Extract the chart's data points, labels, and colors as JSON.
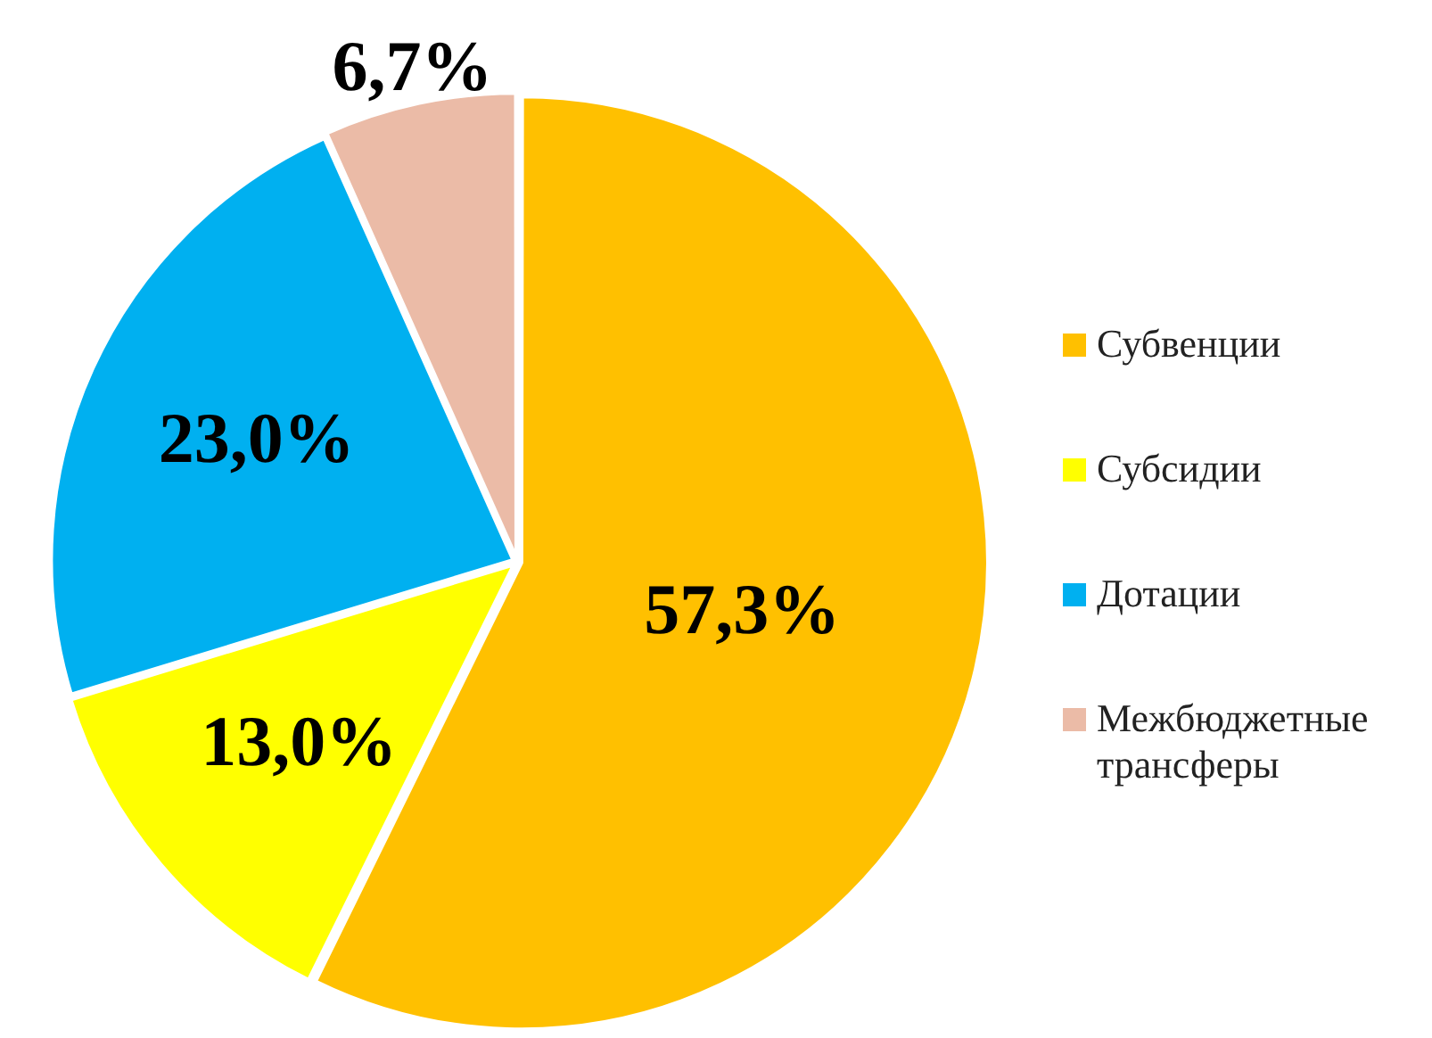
{
  "chart_data": {
    "type": "pie",
    "categories": [
      "Субвенции",
      "Субсидии",
      "Дотации",
      "Межбюджетные трансферы"
    ],
    "values": [
      57.3,
      13.0,
      23.0,
      6.7
    ],
    "colors": [
      "#ffc000",
      "#ffff00",
      "#00b0f0",
      "#ebbba7"
    ],
    "value_labels": [
      "57,3%",
      "13,0%",
      "23,0%",
      "6,7%"
    ],
    "legend": "right"
  }
}
